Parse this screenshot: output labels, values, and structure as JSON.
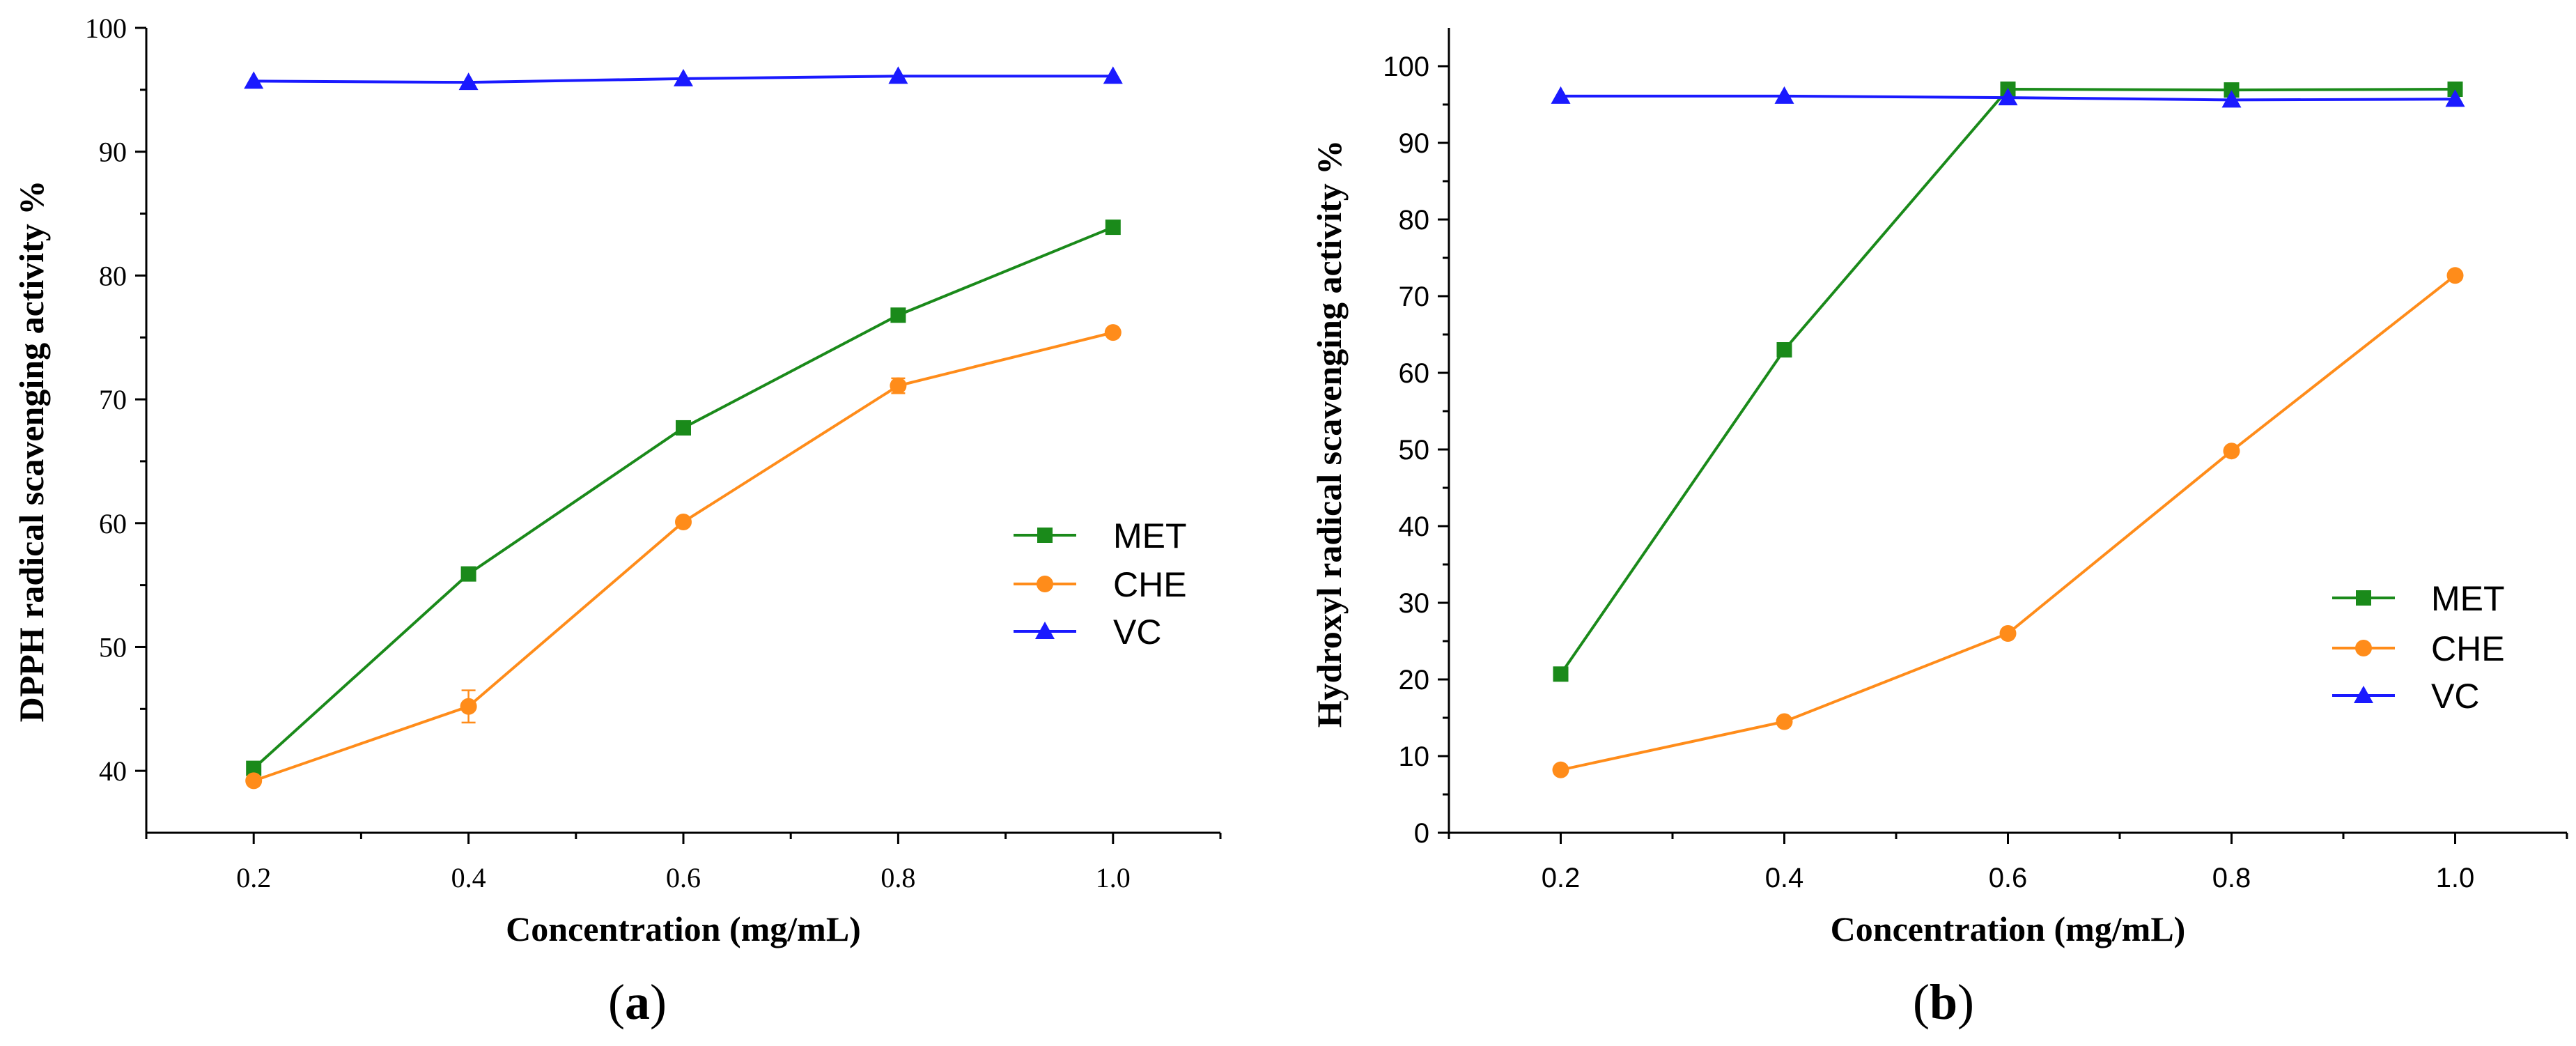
{
  "chart_data": [
    {
      "type": "line",
      "panel_label": {
        "open": "(",
        "letter": "a",
        "close": ")"
      },
      "title": "",
      "xlabel": "Concentration (mg/mL)",
      "ylabel": "DPPH radical scavenging activity %",
      "x": [
        0.2,
        0.4,
        0.6,
        0.8,
        1.0
      ],
      "x_tick_labels": [
        "0.2",
        "0.4",
        "0.6",
        "0.8",
        "1.0"
      ],
      "xlim": [
        0.1,
        1.1
      ],
      "ylim": [
        35,
        100
      ],
      "y_ticks": [
        40,
        50,
        60,
        70,
        80,
        90,
        100
      ],
      "y_tick_labels": [
        "40",
        "50",
        "60",
        "70",
        "80",
        "90",
        "100"
      ],
      "tick_font": "serif",
      "grid": false,
      "legend_position": "center-right",
      "series": [
        {
          "name": "MET",
          "color": "#1a8a1a",
          "marker": "square",
          "values": [
            40.2,
            55.9,
            67.7,
            76.8,
            83.9
          ]
        },
        {
          "name": "CHE",
          "color": "#ff8c1a",
          "marker": "circle",
          "values": [
            39.2,
            45.2,
            60.1,
            71.1,
            75.4
          ],
          "error": [
            0,
            1.3,
            0,
            0.6,
            0
          ]
        },
        {
          "name": "VC",
          "color": "#1a1aff",
          "marker": "triangle",
          "values": [
            95.7,
            95.6,
            95.9,
            96.1,
            96.1
          ]
        }
      ]
    },
    {
      "type": "line",
      "panel_label": {
        "open": "(",
        "letter": "b",
        "close": ")"
      },
      "title": "",
      "xlabel": "Concentration (mg/mL)",
      "ylabel": "Hydroxyl radical scavenging activity %",
      "x": [
        0.2,
        0.4,
        0.6,
        0.8,
        1.0
      ],
      "x_tick_labels": [
        "0.2",
        "0.4",
        "0.6",
        "0.8",
        "1.0"
      ],
      "xlim": [
        0.1,
        1.1
      ],
      "ylim": [
        0,
        105
      ],
      "y_ticks": [
        0,
        10,
        20,
        30,
        40,
        50,
        60,
        70,
        80,
        90,
        100
      ],
      "y_tick_labels": [
        "0",
        "10",
        "20",
        "30",
        "40",
        "50",
        "60",
        "70",
        "80",
        "90",
        "100"
      ],
      "tick_font": "sans",
      "grid": false,
      "legend_position": "bottom-right",
      "series": [
        {
          "name": "MET",
          "color": "#1a8a1a",
          "marker": "square",
          "values": [
            20.7,
            63.0,
            97.0,
            96.9,
            97.0
          ]
        },
        {
          "name": "CHE",
          "color": "#ff8c1a",
          "marker": "circle",
          "values": [
            8.2,
            14.5,
            26.0,
            49.8,
            72.7
          ]
        },
        {
          "name": "VC",
          "color": "#1a1aff",
          "marker": "triangle",
          "values": [
            96.1,
            96.1,
            95.9,
            95.6,
            95.7
          ]
        }
      ]
    }
  ]
}
